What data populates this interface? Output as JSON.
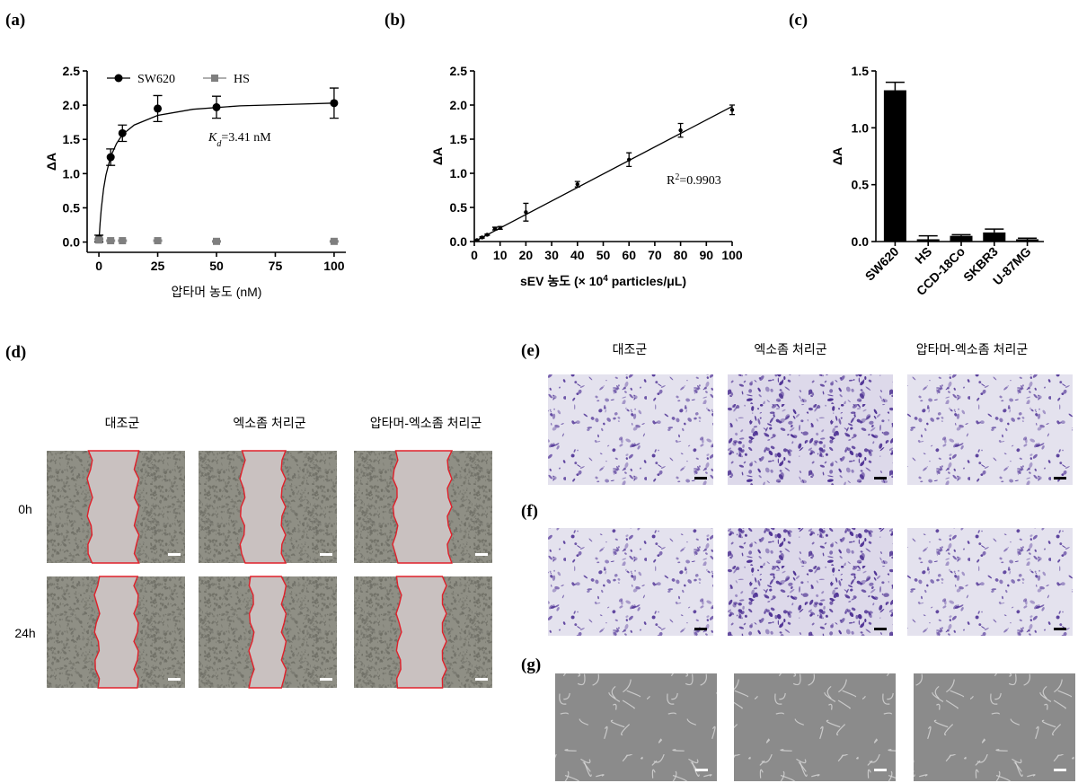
{
  "chart_data": [
    {
      "type": "line",
      "x": [
        0,
        5,
        10,
        25,
        50,
        100
      ],
      "series": [
        {
          "name": "SW620",
          "color": "#000000",
          "marker": "circle",
          "values": [
            0.05,
            1.24,
            1.59,
            1.95,
            1.97,
            2.03
          ],
          "errors": [
            0.05,
            0.12,
            0.12,
            0.19,
            0.16,
            0.22
          ]
        },
        {
          "name": "HS",
          "color": "#7f7f7f",
          "marker": "square",
          "values": [
            0.03,
            0.02,
            0.02,
            0.02,
            0.01,
            0.01
          ],
          "errors": [
            0.01,
            0.01,
            0.01,
            0.01,
            0.01,
            0.01
          ]
        }
      ],
      "fit": {
        "x": [
          0,
          0.5,
          1,
          2,
          3,
          5,
          7.5,
          10,
          15,
          25,
          40,
          60,
          80,
          100
        ],
        "values": [
          0,
          0.27,
          0.48,
          0.78,
          0.98,
          1.25,
          1.44,
          1.57,
          1.71,
          1.85,
          1.94,
          1.99,
          2.01,
          2.03
        ]
      },
      "xlabel": [
        "압타머 농도 (nM)"
      ],
      "ylabel": "ΔA",
      "annotation": [
        "K",
        "d",
        "=3.41 nM"
      ],
      "annotation_style": "subscript",
      "xlim": [
        -5,
        105
      ],
      "ylim": [
        -0.15,
        2.5
      ],
      "xticks": [
        0,
        25,
        50,
        75,
        100
      ],
      "yticks": [
        {
          "value": 0,
          "label": "0.0"
        },
        0.5,
        {
          "value": 1,
          "label": "1.0"
        },
        1.5,
        {
          "value": 2,
          "label": "2.0"
        },
        2.5
      ],
      "legend": "upper left"
    },
    {
      "type": "line",
      "x": [
        1,
        3,
        5,
        8,
        10,
        20,
        40,
        60,
        80,
        100
      ],
      "color": "#000000",
      "marker": "circle",
      "values": [
        0.02,
        0.06,
        0.1,
        0.19,
        0.2,
        0.43,
        0.84,
        1.2,
        1.63,
        1.93
      ],
      "errors": [
        0.01,
        0.01,
        0.01,
        0.02,
        0.02,
        0.13,
        0.04,
        0.1,
        0.1,
        0.07
      ],
      "fit": {
        "x": [
          0,
          100
        ],
        "values": [
          0,
          1.98
        ]
      },
      "xlabel": [
        "sEV 농도 (× 10",
        "4",
        " particles/μL)"
      ],
      "xlabel_style": "superscript",
      "ylabel": "ΔA",
      "annotation": [
        "R",
        "2",
        "=0.9903"
      ],
      "annotation_style": "superscript",
      "xlim": [
        0,
        100
      ],
      "ylim": [
        0,
        2.5
      ],
      "xticks": [
        0,
        10,
        20,
        30,
        40,
        50,
        60,
        70,
        80,
        90,
        100
      ],
      "yticks": [
        {
          "value": 0,
          "label": "0.0"
        },
        0.5,
        {
          "value": 1,
          "label": "1.0"
        },
        1.5,
        {
          "value": 2,
          "label": "2.0"
        },
        2.5
      ]
    },
    {
      "type": "bar",
      "categories": [
        "SW620",
        "HS",
        "CCD-18Co",
        "SKBR3",
        "U-87MG"
      ],
      "values": [
        1.33,
        0.02,
        0.05,
        0.08,
        0.02
      ],
      "errors": [
        0.07,
        0.03,
        0.01,
        0.03,
        0.01
      ],
      "color": "#000000",
      "ylabel": "ΔA",
      "ylim": [
        0,
        1.5
      ],
      "yticks": [
        {
          "value": 0,
          "label": "0.0"
        },
        0.5,
        {
          "value": 1,
          "label": "1.0"
        },
        1.5
      ]
    }
  ],
  "panel_labels": [
    "(a)",
    "(b)",
    "(c)",
    "(d)",
    "(e)",
    "(f)",
    "(g)"
  ],
  "wound_healing": {
    "columns": [
      "대조군",
      "엑소좀 처리군",
      "압타머-엑소좀 처리군"
    ],
    "rows": [
      "0h",
      "24h"
    ]
  },
  "invasion": {
    "columns": [
      "대조군",
      "엑소좀 처리군",
      "압타머-엑소좀 처리군"
    ]
  }
}
